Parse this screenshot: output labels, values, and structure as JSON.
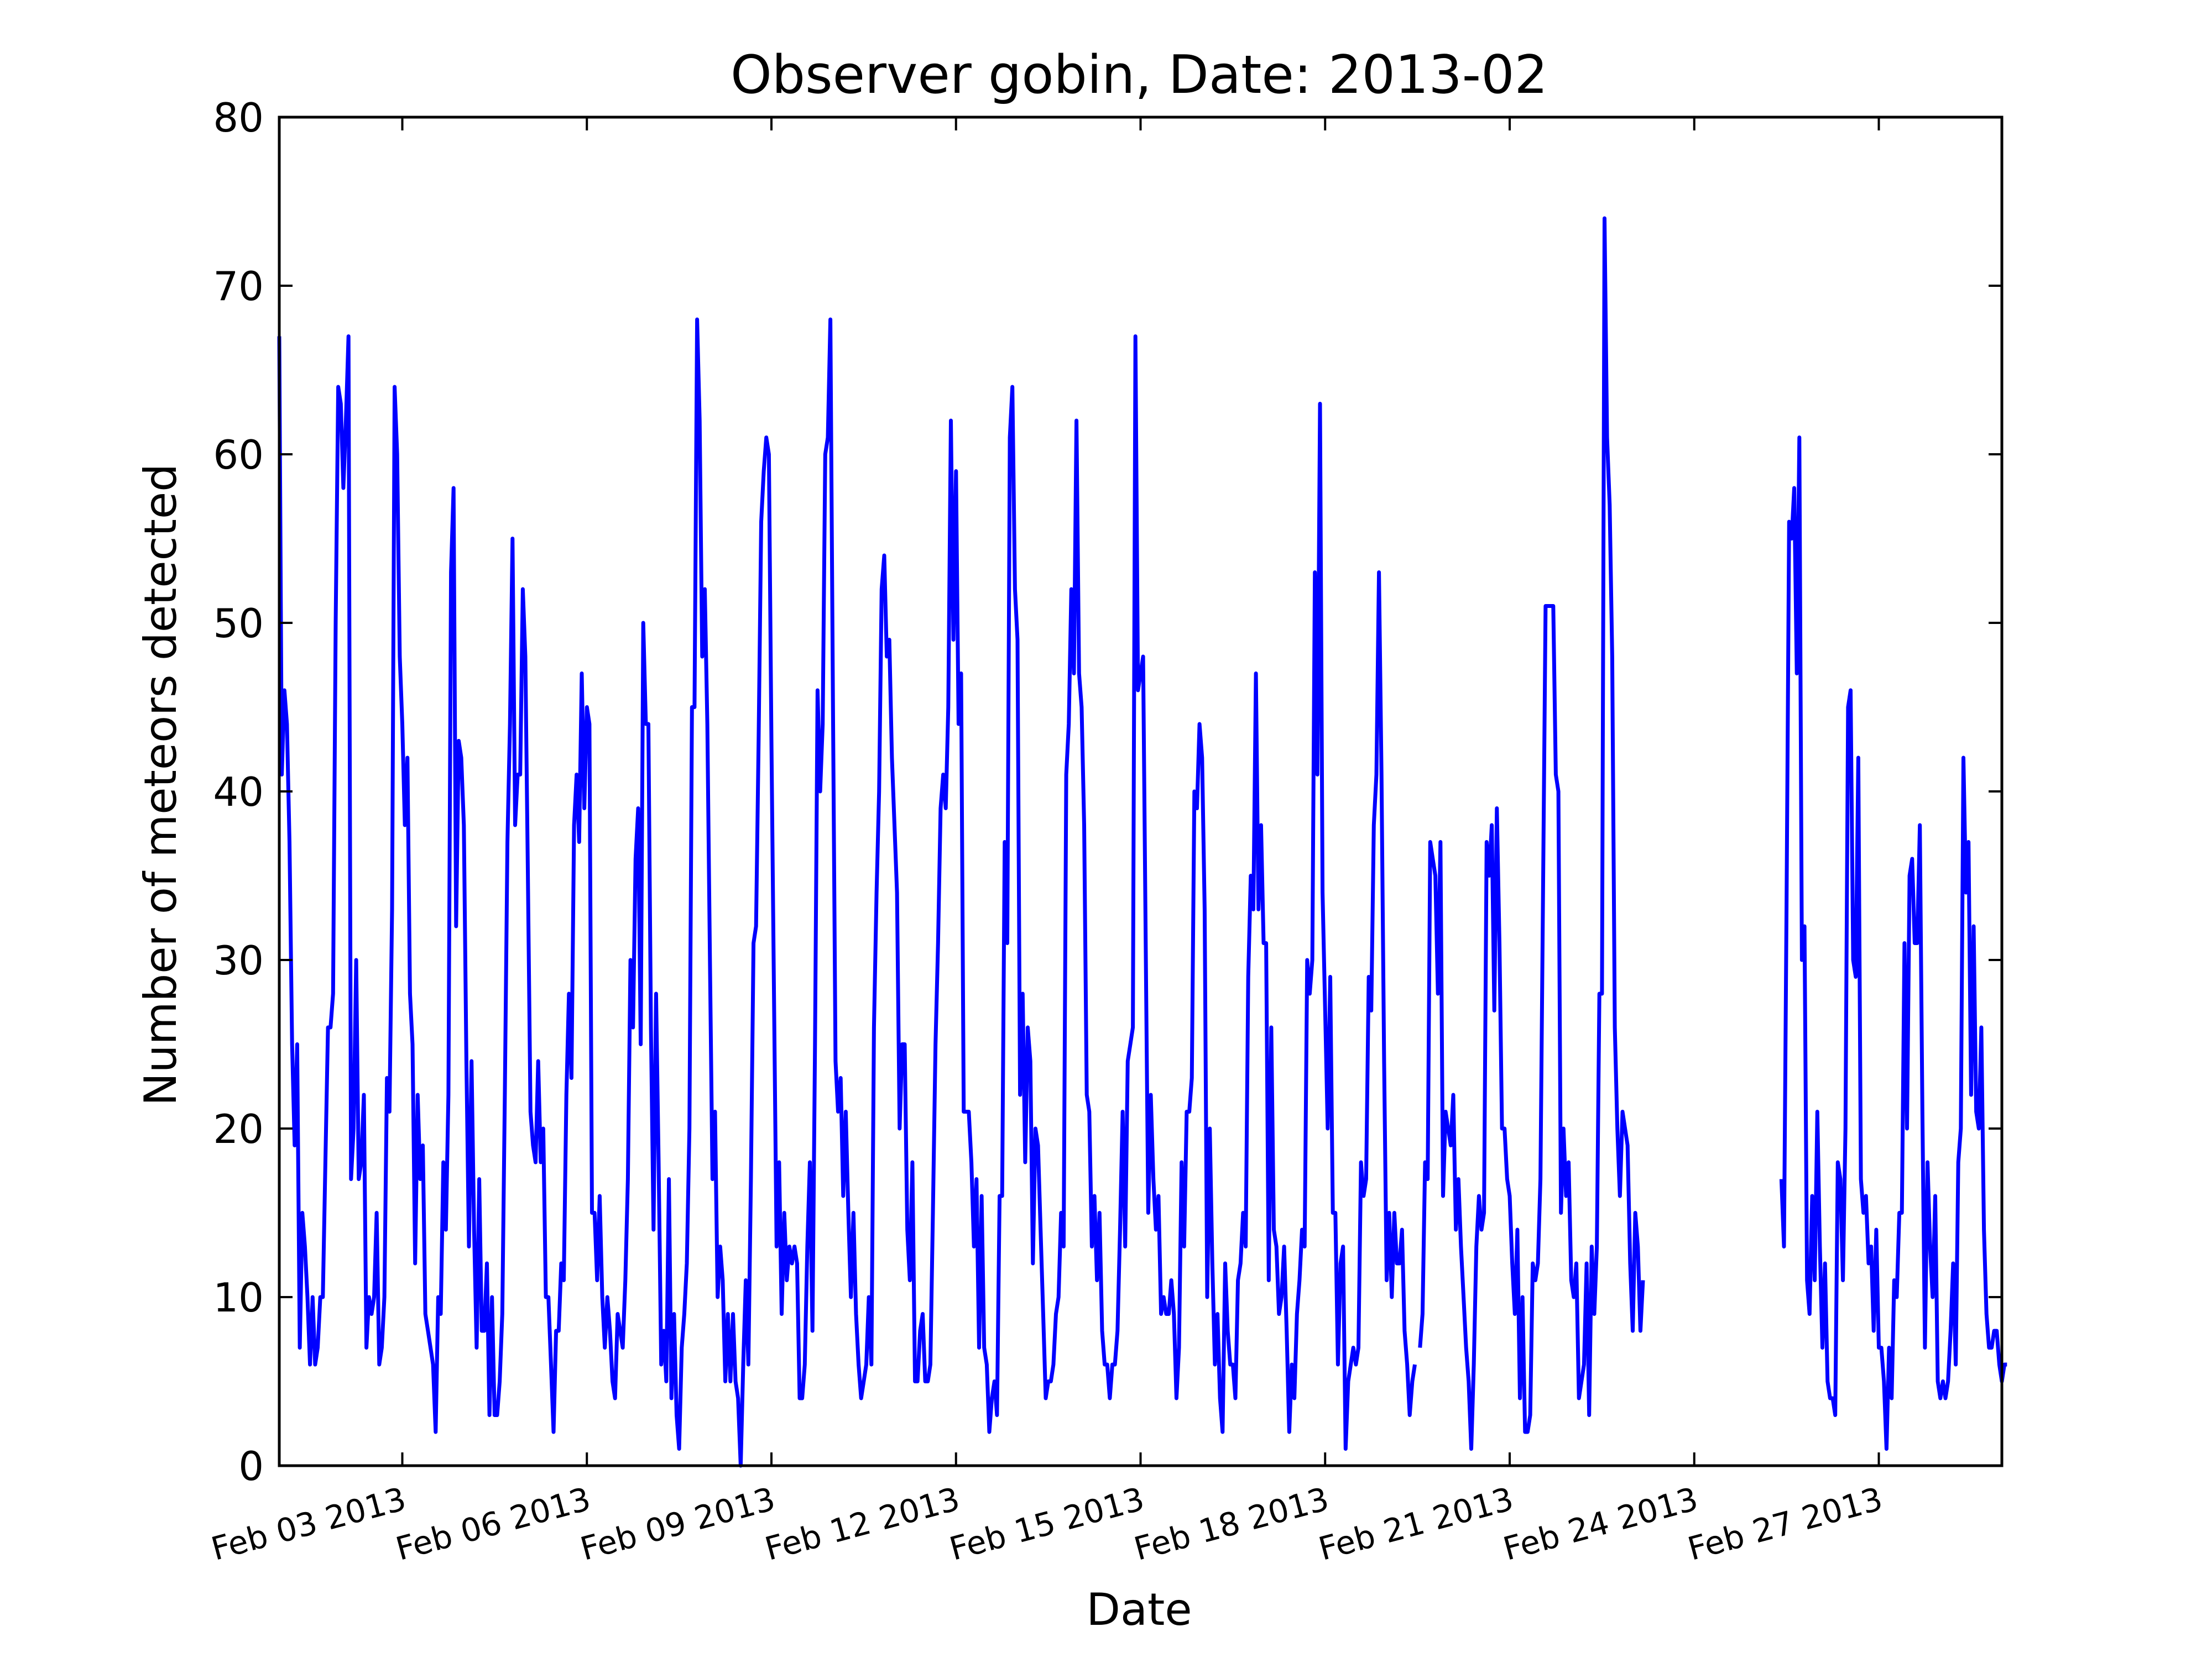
{
  "chart_data": {
    "type": "line",
    "title": "Observer gobin, Date: 2013-02",
    "xlabel": "Date",
    "ylabel": "Number of meteors detected",
    "xlim": [
      "2013-02-01T00:00",
      "2013-03-01T00:00"
    ],
    "ylim": [
      0,
      80
    ],
    "grid": false,
    "line_color": "#0000ff",
    "yticks": [
      0,
      10,
      20,
      30,
      40,
      50,
      60,
      70,
      80
    ],
    "xticks": [
      {
        "date": "2013-02-03",
        "label": "Feb 03 2013"
      },
      {
        "date": "2013-02-06",
        "label": "Feb 06 2013"
      },
      {
        "date": "2013-02-09",
        "label": "Feb 09 2013"
      },
      {
        "date": "2013-02-12",
        "label": "Feb 12 2013"
      },
      {
        "date": "2013-02-15",
        "label": "Feb 15 2013"
      },
      {
        "date": "2013-02-18",
        "label": "Feb 18 2013"
      },
      {
        "date": "2013-02-21",
        "label": "Feb 21 2013"
      },
      {
        "date": "2013-02-24",
        "label": "Feb 24 2013"
      },
      {
        "date": "2013-02-27",
        "label": "Feb 27 2013"
      }
    ],
    "series": [
      {
        "segments": [
          {
            "start": "2013-02-01T00:00",
            "step_hours": 1,
            "values": [
              67,
              41,
              46,
              44,
              37,
              25,
              19,
              25,
              7,
              15,
              13,
              10,
              6,
              10,
              6,
              7,
              10,
              10,
              18,
              26,
              26,
              28,
              50,
              64,
              63,
              58,
              62,
              67,
              17,
              20,
              30,
              17,
              18,
              22,
              7,
              10,
              9,
              10,
              15,
              6,
              7,
              10,
              23,
              21,
              33,
              64,
              60,
              48,
              44,
              38,
              42,
              28,
              25,
              12,
              22,
              17,
              19,
              9,
              8,
              7,
              6,
              2,
              10,
              9,
              18,
              14,
              22,
              53,
              58,
              32,
              43,
              42,
              38,
              24,
              13,
              24,
              14,
              7,
              17,
              8,
              8,
              12,
              3,
              10,
              3,
              3,
              5,
              9,
              22,
              37,
              44,
              55,
              38,
              41,
              41,
              52,
              48,
              35,
              21,
              19,
              18,
              24,
              18,
              20,
              10,
              10,
              6,
              2,
              8,
              8,
              12,
              11,
              22,
              28,
              23,
              38,
              41,
              37,
              47,
              39,
              45,
              44,
              15,
              15,
              11,
              16,
              10,
              7,
              10,
              8,
              5,
              4,
              9,
              8,
              7,
              11,
              17,
              30,
              26,
              36,
              39,
              25,
              50,
              44,
              44,
              26,
              14,
              28,
              18,
              6,
              8,
              5,
              17,
              4,
              9,
              3,
              1,
              7,
              9,
              12,
              20,
              45,
              45,
              68,
              62,
              48,
              52,
              44,
              30,
              17,
              21,
              10,
              13,
              11,
              5,
              9,
              5,
              9,
              5,
              4,
              0,
              6,
              11,
              6,
              17,
              31,
              32,
              43,
              56,
              59,
              61,
              60,
              43,
              28,
              13,
              18,
              9,
              15,
              11,
              13,
              12,
              13,
              12,
              4,
              4,
              6,
              13,
              18,
              8,
              25,
              46,
              40,
              44,
              60,
              61,
              68,
              45,
              24,
              21,
              23,
              16,
              21,
              15,
              10,
              15,
              9,
              6,
              4,
              5,
              6,
              10,
              6,
              26,
              34,
              40,
              52,
              54,
              48,
              49,
              42,
              38,
              34,
              20,
              25,
              25,
              14,
              11,
              18,
              5,
              5,
              8,
              9,
              5,
              5,
              6,
              15,
              25,
              31,
              39,
              41,
              39,
              45,
              62,
              49,
              59,
              44,
              47,
              21,
              21,
              21,
              18,
              13,
              17,
              7,
              16,
              7,
              6,
              2,
              4,
              5,
              3,
              16,
              16,
              37,
              31,
              61,
              64,
              52,
              49,
              22,
              28,
              18,
              26,
              24,
              12,
              20,
              19,
              14,
              9,
              4,
              5,
              5,
              6,
              9,
              10,
              15,
              13,
              41,
              44,
              52,
              47,
              62,
              47,
              45,
              38,
              22,
              21,
              13,
              16,
              11,
              15,
              8,
              6,
              6,
              4,
              6,
              6,
              8,
              14,
              21,
              13,
              24,
              25,
              26,
              67,
              46,
              47,
              48,
              31,
              15,
              22,
              17,
              14,
              16,
              9,
              10,
              9,
              9,
              11,
              9,
              4,
              7,
              18,
              13,
              21,
              21,
              23,
              40,
              39,
              44,
              42,
              33,
              10,
              20,
              12,
              6,
              9,
              4,
              2,
              12,
              8,
              6,
              6,
              4,
              11,
              12,
              15,
              13,
              29,
              35,
              33,
              47,
              33,
              38,
              31,
              31,
              11,
              26,
              14,
              13,
              9,
              10,
              13,
              8,
              2,
              6,
              4,
              9,
              11,
              14,
              13,
              30,
              28,
              30,
              53,
              41,
              63,
              34,
              27,
              20,
              29,
              15,
              15,
              6,
              12,
              13,
              1,
              5,
              6,
              7,
              6,
              7,
              18,
              16,
              17,
              29,
              27,
              38,
              41,
              53,
              41,
              24,
              11,
              15,
              10,
              15,
              12,
              12,
              14,
              8,
              6,
              3,
              5,
              6,
              null,
              7,
              9,
              18,
              17,
              37,
              36,
              35,
              28,
              37,
              16,
              21,
              20,
              19,
              22,
              14,
              17,
              13,
              10,
              7,
              5,
              1,
              6,
              13,
              16,
              14,
              15,
              37,
              35,
              38,
              27,
              39,
              31,
              20,
              20,
              17,
              16,
              12,
              9,
              14,
              4,
              10,
              2,
              2,
              3,
              12,
              11,
              12,
              17,
              34,
              51,
              51,
              51,
              51,
              41,
              40,
              15,
              20,
              16,
              18,
              11,
              10,
              12,
              4,
              5,
              6,
              12,
              3,
              13,
              9,
              13,
              28,
              28,
              74,
              61,
              57,
              48,
              26,
              20,
              16,
              21,
              20,
              19,
              12,
              8,
              15,
              13,
              8,
              11
            ]
          },
          {
            "start": "2013-02-25T10:00",
            "step_hours": 1,
            "values": [
              17,
              13,
              33,
              56,
              55,
              58,
              47,
              61,
              30,
              32,
              11,
              9,
              16,
              11,
              21,
              13,
              7,
              12,
              5,
              4,
              4,
              3,
              18,
              17,
              11,
              20,
              45,
              46,
              30,
              29,
              42,
              17,
              15,
              16,
              12,
              13,
              8,
              14,
              7,
              7,
              5,
              1,
              7,
              4,
              11,
              10,
              15,
              15,
              31,
              20,
              35,
              36,
              31,
              31,
              38,
              21,
              7,
              18,
              13,
              10,
              16,
              5,
              4,
              5,
              4,
              5,
              8,
              12,
              6,
              18,
              20,
              42,
              34,
              37,
              22,
              32,
              21,
              20,
              26,
              14,
              9,
              7,
              7,
              8,
              8,
              6,
              5,
              6,
              6
            ]
          }
        ]
      }
    ]
  }
}
